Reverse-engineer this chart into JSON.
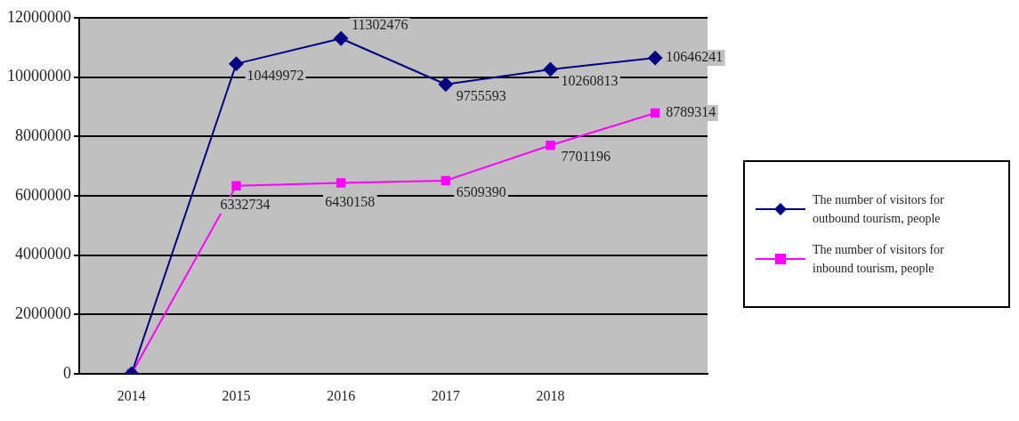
{
  "chart_data": {
    "type": "line",
    "categories": [
      "2014",
      "2015",
      "2016",
      "2017",
      "2018",
      null
    ],
    "series": [
      {
        "name": "The number of visitors for outbound tourism, people",
        "color": "#000080",
        "marker": "diamond",
        "values": [
          0,
          10449972,
          11302476,
          9755593,
          10260813,
          10646241
        ],
        "value_labels": [
          null,
          "10449972",
          "11302476",
          "9755593",
          "10260813",
          "10646241"
        ]
      },
      {
        "name": "The number of visitors for inbound tourism, people",
        "color": "#ff00ff",
        "marker": "square",
        "values": [
          0,
          6332734,
          6430158,
          6509390,
          7701196,
          8789314
        ],
        "value_labels": [
          null,
          "6332734",
          "6430158",
          "6509390",
          "7701196",
          "8789314"
        ]
      }
    ],
    "ylim": [
      0,
      12000000
    ],
    "yticks": [
      0,
      2000000,
      4000000,
      6000000,
      8000000,
      10000000,
      12000000
    ],
    "grid": "y",
    "legend": "right",
    "line_style": "solid"
  }
}
